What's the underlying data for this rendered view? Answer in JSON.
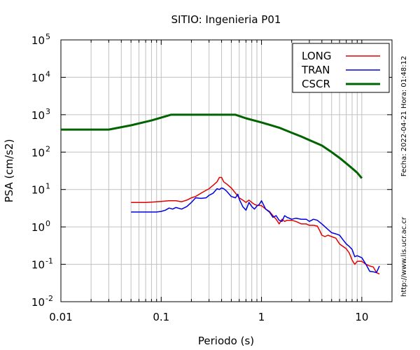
{
  "chart_data": {
    "type": "line",
    "title": "SITIO: Ingenieria P01",
    "xlabel": "Periodo (s)",
    "ylabel": "PSA (cm/s2)",
    "xscale": "log",
    "yscale": "log",
    "xlim": [
      0.01,
      20
    ],
    "ylim": [
      0.01,
      100000
    ],
    "grid": true,
    "legend_position": "top-right",
    "x_ticks": [
      {
        "value": 0.01,
        "label": "0.01"
      },
      {
        "value": 0.1,
        "label": "0.1"
      },
      {
        "value": 1,
        "label": "1"
      },
      {
        "value": 10,
        "label": "10"
      }
    ],
    "y_ticks": [
      {
        "value": 0.01,
        "base": "10",
        "exp": "-2"
      },
      {
        "value": 0.1,
        "base": "10",
        "exp": "-1"
      },
      {
        "value": 1,
        "base": "10",
        "exp": "0"
      },
      {
        "value": 10,
        "base": "10",
        "exp": "1"
      },
      {
        "value": 100,
        "base": "10",
        "exp": "2"
      },
      {
        "value": 1000,
        "base": "10",
        "exp": "3"
      },
      {
        "value": 10000,
        "base": "10",
        "exp": "4"
      },
      {
        "value": 100000,
        "base": "10",
        "exp": "5"
      }
    ],
    "series": [
      {
        "name": "LONG",
        "color": "#e00000",
        "width": 1.5,
        "points": [
          [
            0.05,
            4.5
          ],
          [
            0.06,
            4.5
          ],
          [
            0.07,
            4.5
          ],
          [
            0.08,
            4.6
          ],
          [
            0.09,
            4.7
          ],
          [
            0.1,
            4.8
          ],
          [
            0.12,
            5.0
          ],
          [
            0.14,
            5.0
          ],
          [
            0.16,
            4.7
          ],
          [
            0.18,
            5.2
          ],
          [
            0.2,
            6.0
          ],
          [
            0.22,
            6.5
          ],
          [
            0.25,
            8.0
          ],
          [
            0.28,
            9.5
          ],
          [
            0.3,
            10.5
          ],
          [
            0.33,
            13.0
          ],
          [
            0.36,
            16.0
          ],
          [
            0.38,
            21.0
          ],
          [
            0.4,
            21.0
          ],
          [
            0.42,
            16.0
          ],
          [
            0.45,
            14.0
          ],
          [
            0.5,
            11.0
          ],
          [
            0.55,
            8.0
          ],
          [
            0.6,
            6.0
          ],
          [
            0.65,
            5.2
          ],
          [
            0.7,
            4.5
          ],
          [
            0.75,
            5.2
          ],
          [
            0.8,
            4.5
          ],
          [
            0.85,
            4.0
          ],
          [
            0.9,
            3.8
          ],
          [
            1.0,
            3.7
          ],
          [
            1.1,
            3.0
          ],
          [
            1.2,
            2.6
          ],
          [
            1.3,
            2.0
          ],
          [
            1.4,
            1.6
          ],
          [
            1.5,
            1.2
          ],
          [
            1.6,
            1.6
          ],
          [
            1.7,
            1.4
          ],
          [
            1.8,
            1.5
          ],
          [
            2.0,
            1.5
          ],
          [
            2.2,
            1.4
          ],
          [
            2.5,
            1.2
          ],
          [
            2.8,
            1.2
          ],
          [
            3.0,
            1.1
          ],
          [
            3.3,
            1.1
          ],
          [
            3.6,
            1.05
          ],
          [
            3.8,
            0.8
          ],
          [
            4.0,
            0.6
          ],
          [
            4.3,
            0.55
          ],
          [
            4.6,
            0.6
          ],
          [
            5.0,
            0.55
          ],
          [
            5.5,
            0.5
          ],
          [
            6.0,
            0.35
          ],
          [
            6.5,
            0.3
          ],
          [
            7.0,
            0.26
          ],
          [
            7.5,
            0.2
          ],
          [
            8.0,
            0.13
          ],
          [
            8.5,
            0.1
          ],
          [
            9.0,
            0.12
          ],
          [
            10.0,
            0.12
          ],
          [
            11.0,
            0.1
          ],
          [
            12.0,
            0.09
          ],
          [
            13.0,
            0.085
          ],
          [
            14.0,
            0.06
          ],
          [
            15.0,
            0.055
          ]
        ]
      },
      {
        "name": "TRAN",
        "color": "#0000e0",
        "width": 1.5,
        "points": [
          [
            0.05,
            2.5
          ],
          [
            0.06,
            2.5
          ],
          [
            0.07,
            2.5
          ],
          [
            0.08,
            2.5
          ],
          [
            0.09,
            2.5
          ],
          [
            0.1,
            2.6
          ],
          [
            0.11,
            2.8
          ],
          [
            0.12,
            3.2
          ],
          [
            0.13,
            3.0
          ],
          [
            0.14,
            3.3
          ],
          [
            0.16,
            3.0
          ],
          [
            0.18,
            3.5
          ],
          [
            0.2,
            4.5
          ],
          [
            0.22,
            6.0
          ],
          [
            0.25,
            5.8
          ],
          [
            0.28,
            6.0
          ],
          [
            0.3,
            7.0
          ],
          [
            0.33,
            8.0
          ],
          [
            0.36,
            10.5
          ],
          [
            0.38,
            10.0
          ],
          [
            0.4,
            11.0
          ],
          [
            0.42,
            10.5
          ],
          [
            0.45,
            9.0
          ],
          [
            0.5,
            6.5
          ],
          [
            0.55,
            6.0
          ],
          [
            0.58,
            7.5
          ],
          [
            0.6,
            5.5
          ],
          [
            0.65,
            3.5
          ],
          [
            0.7,
            2.8
          ],
          [
            0.75,
            4.5
          ],
          [
            0.8,
            3.5
          ],
          [
            0.85,
            3.0
          ],
          [
            0.9,
            3.6
          ],
          [
            0.95,
            4.0
          ],
          [
            1.0,
            5.0
          ],
          [
            1.1,
            3.0
          ],
          [
            1.2,
            2.5
          ],
          [
            1.3,
            1.8
          ],
          [
            1.4,
            2.0
          ],
          [
            1.5,
            1.5
          ],
          [
            1.6,
            1.4
          ],
          [
            1.7,
            2.0
          ],
          [
            1.8,
            1.8
          ],
          [
            2.0,
            1.6
          ],
          [
            2.2,
            1.7
          ],
          [
            2.5,
            1.6
          ],
          [
            2.8,
            1.6
          ],
          [
            3.0,
            1.4
          ],
          [
            3.3,
            1.6
          ],
          [
            3.6,
            1.5
          ],
          [
            4.0,
            1.2
          ],
          [
            4.5,
            0.9
          ],
          [
            5.0,
            0.7
          ],
          [
            5.5,
            0.65
          ],
          [
            6.0,
            0.6
          ],
          [
            6.5,
            0.45
          ],
          [
            7.0,
            0.35
          ],
          [
            7.5,
            0.3
          ],
          [
            8.0,
            0.25
          ],
          [
            8.5,
            0.16
          ],
          [
            9.0,
            0.17
          ],
          [
            10.0,
            0.15
          ],
          [
            11.0,
            0.1
          ],
          [
            12.0,
            0.065
          ],
          [
            13.0,
            0.063
          ],
          [
            14.0,
            0.06
          ],
          [
            15.0,
            0.09
          ]
        ]
      },
      {
        "name": "CSCR",
        "color": "#006400",
        "width": 3,
        "points": [
          [
            0.01,
            400
          ],
          [
            0.03,
            400
          ],
          [
            0.05,
            520
          ],
          [
            0.08,
            700
          ],
          [
            0.125,
            1000
          ],
          [
            0.55,
            1000
          ],
          [
            0.7,
            800
          ],
          [
            1.0,
            620
          ],
          [
            1.5,
            450
          ],
          [
            2.0,
            330
          ],
          [
            2.5,
            260
          ],
          [
            3.0,
            210
          ],
          [
            4.0,
            150
          ],
          [
            5.0,
            100
          ],
          [
            6.0,
            70
          ],
          [
            7.0,
            50
          ],
          [
            8.0,
            37
          ],
          [
            9.0,
            28
          ],
          [
            10.0,
            20
          ]
        ]
      }
    ]
  },
  "side_labels": {
    "timestamp": "Fecha: 2022-04-21 Hora: 01:48:12",
    "url": "http://www.lis.ucr.ac.cr"
  }
}
